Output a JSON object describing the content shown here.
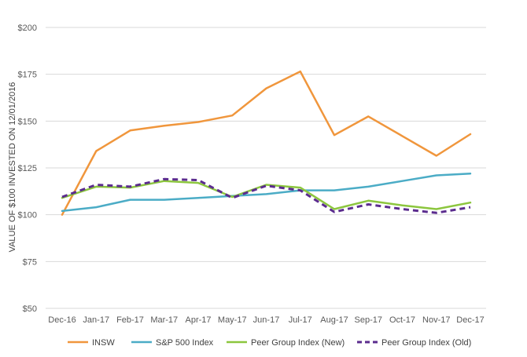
{
  "chart_data": {
    "type": "line",
    "title": "",
    "xlabel": "",
    "ylabel": "VALUE OF $100 INVESTED ON 12/01/2016",
    "categories": [
      "Dec-16",
      "Jan-17",
      "Feb-17",
      "Mar-17",
      "Apr-17",
      "May-17",
      "Jun-17",
      "Jul-17",
      "Aug-17",
      "Sep-17",
      "Oct-17",
      "Nov-17",
      "Dec-17"
    ],
    "ylim": [
      50,
      200
    ],
    "yticks": [
      50,
      75,
      100,
      125,
      150,
      175,
      200
    ],
    "ytick_labels": [
      "$50",
      "$75",
      "$100",
      "$125",
      "$150",
      "$175",
      "$200"
    ],
    "grid": true,
    "legend_position": "bottom",
    "series": [
      {
        "name": "INSW",
        "color": "#F0963C",
        "dashed": false,
        "values": [
          100,
          134,
          145,
          147.5,
          149.5,
          153,
          167.5,
          176.5,
          142.5,
          152.5,
          142,
          131.5,
          143
        ]
      },
      {
        "name": "S&P 500 Index",
        "color": "#4BACC6",
        "dashed": false,
        "values": [
          102,
          104,
          108,
          108,
          109,
          110,
          111,
          113,
          113,
          115,
          118,
          121,
          122
        ]
      },
      {
        "name": "Peer Group Index (New)",
        "color": "#8CC63E",
        "dashed": false,
        "values": [
          109,
          115,
          114.5,
          118,
          117,
          109.5,
          116,
          114.5,
          103,
          107.5,
          105,
          103,
          106.5
        ]
      },
      {
        "name": "Peer Group Index (Old)",
        "color": "#5B2C8E",
        "dashed": true,
        "values": [
          109.5,
          116,
          115,
          119,
          118.5,
          109,
          115.5,
          113,
          101.5,
          105.5,
          103,
          101,
          104
        ]
      }
    ]
  }
}
